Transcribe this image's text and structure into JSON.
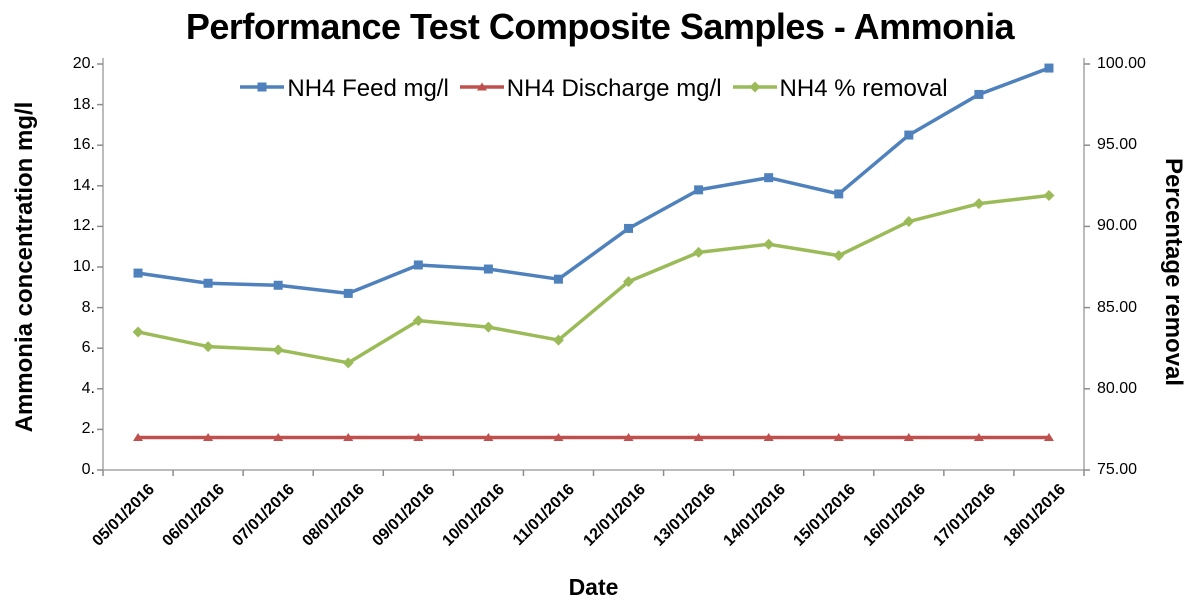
{
  "title": "Performance Test Composite Samples - Ammonia",
  "colors": {
    "feed": "#4F81BD",
    "discharge": "#C0504D",
    "removal": "#9BBB59",
    "axis_line": "#A6A6A6",
    "tick_mark": "#8C8C8C",
    "text": "#000000"
  },
  "chart_data": {
    "type": "line",
    "title": "Performance Test Composite Samples - Ammonia",
    "xlabel": "Date",
    "x": [
      "05/01/2016",
      "06/01/2016",
      "07/01/2016",
      "08/01/2016",
      "09/01/2016",
      "10/01/2016",
      "11/01/2016",
      "12/01/2016",
      "13/01/2016",
      "14/01/2016",
      "15/01/2016",
      "16/01/2016",
      "17/01/2016",
      "18/01/2016"
    ],
    "left_axis": {
      "label": "Ammonia concentration mg/l",
      "range": [
        0,
        20
      ],
      "tick_labels_top_to_bottom": [
        "20.",
        "18.",
        "16.",
        "14.",
        "12.",
        "10.",
        "8.",
        "6.",
        "4.",
        "2.",
        "0."
      ]
    },
    "right_axis": {
      "label": "Percentage removal",
      "range": [
        75,
        100
      ],
      "tick_labels_top_to_bottom": [
        "100.00",
        "95.00",
        "90.00",
        "85.00",
        "80.00",
        "75.00"
      ]
    },
    "series": [
      {
        "name": "NH4 Feed mg/l",
        "axis": "left",
        "color": "#4F81BD",
        "marker": "square",
        "values": [
          9.7,
          9.2,
          9.1,
          8.7,
          10.1,
          9.9,
          9.4,
          11.9,
          13.8,
          14.4,
          13.6,
          16.5,
          18.5,
          19.8
        ]
      },
      {
        "name": "NH4 Discharge mg/l",
        "axis": "left",
        "color": "#C0504D",
        "marker": "triangle",
        "values": [
          1.6,
          1.6,
          1.6,
          1.6,
          1.6,
          1.6,
          1.6,
          1.6,
          1.6,
          1.6,
          1.6,
          1.6,
          1.6,
          1.6
        ]
      },
      {
        "name": "NH4 % removal",
        "axis": "right",
        "color": "#9BBB59",
        "marker": "diamond",
        "values": [
          83.5,
          82.6,
          82.4,
          81.6,
          84.2,
          83.8,
          83.0,
          86.6,
          88.4,
          88.9,
          88.2,
          90.3,
          91.4,
          91.9
        ]
      }
    ],
    "legend_position": "top",
    "grid": false
  }
}
